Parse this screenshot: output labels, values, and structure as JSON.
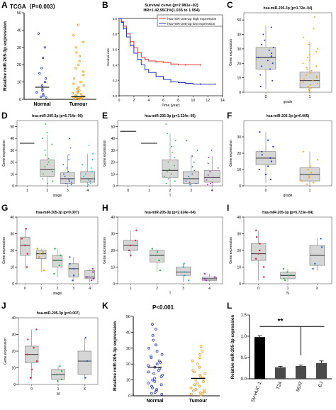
{
  "chart_data": [
    {
      "id": "A",
      "panel_letter": "A",
      "type": "scatter",
      "title": "TCGA（P=0.003）",
      "ylabel": "Relative miR-205-3p expression",
      "categories": [
        "Normal",
        "Tumour"
      ],
      "ylim": [
        0,
        50
      ],
      "yticks": [
        0,
        10,
        20,
        30,
        40,
        50
      ],
      "series": [
        {
          "color": "#2f3bb8",
          "mean": 7,
          "values": [
            38,
            30,
            24,
            18,
            15,
            12,
            10,
            8,
            6,
            5,
            4,
            3,
            2,
            1.5,
            1
          ]
        },
        {
          "color": "#f39c1f",
          "mean": 1.5,
          "values": [
            43,
            37,
            33,
            30,
            27,
            25,
            22,
            20,
            18,
            16,
            14,
            12,
            10,
            9,
            8,
            7,
            6,
            5,
            4.5,
            4,
            3.5,
            3,
            2.5,
            2,
            1.8,
            1.6,
            1.4,
            1.2,
            1,
            0.8,
            0.6,
            0.5,
            0.4,
            0.3,
            0.2,
            0.1,
            0.05
          ]
        }
      ]
    },
    {
      "id": "B",
      "panel_letter": "B",
      "type": "line",
      "title": "Survival curve (p=2.981e−02)",
      "subtitle": "HR=1.42,95CI%(1.035 to 1.954)",
      "xlabel": "Time (year)",
      "ylabel": "Survival rate",
      "xlim": [
        0,
        14
      ],
      "ylim": [
        0,
        1
      ],
      "xticks": [
        0,
        2,
        4,
        6,
        8,
        10,
        12,
        14
      ],
      "yticks": [
        0,
        0.2,
        0.4,
        0.6,
        0.8,
        1.0
      ],
      "ytick_labels": [
        "0.0",
        "0.2",
        "0.4",
        "0.6",
        "0.8",
        "1.0"
      ],
      "series": [
        {
          "name": "hsa-miR-205-3p high expression",
          "color": "#e8322a",
          "x": [
            0,
            0.3,
            0.6,
            1,
            1.5,
            2,
            2.5,
            3,
            3.5,
            4,
            5,
            6,
            7,
            8,
            9,
            10,
            11
          ],
          "y": [
            1,
            0.96,
            0.9,
            0.8,
            0.7,
            0.62,
            0.56,
            0.5,
            0.47,
            0.45,
            0.44,
            0.43,
            0.41,
            0.4,
            0.4,
            0.4,
            0.4
          ]
        },
        {
          "name": "hsa-miR-205-3p low expression",
          "color": "#2434c4",
          "x": [
            0,
            0.3,
            0.6,
            1,
            1.5,
            2,
            2.5,
            3,
            3.5,
            4,
            5,
            6,
            7,
            8,
            9,
            10,
            11,
            12,
            13
          ],
          "y": [
            1,
            0.95,
            0.87,
            0.76,
            0.65,
            0.55,
            0.47,
            0.4,
            0.34,
            0.3,
            0.25,
            0.21,
            0.18,
            0.17,
            0.16,
            0.15,
            0.15,
            0.15,
            0.15
          ]
        }
      ]
    },
    {
      "id": "C",
      "panel_letter": "C",
      "type": "box",
      "title": "hsa-miR-205-3p (p=1.72e−04)",
      "xlabel": "grade",
      "ylabel": "Gene expression",
      "categories": [
        "0",
        "1"
      ],
      "ylim": [
        0,
        55
      ],
      "yticks": [
        0,
        10,
        20,
        30,
        40,
        50
      ],
      "boxes": [
        {
          "q1": 16,
          "median": 24,
          "q3": 31,
          "whisker_low": 2,
          "whisker_high": 46,
          "color": "#2434c4",
          "points": [
            45,
            40,
            36,
            33,
            31,
            29,
            27,
            25,
            24,
            22,
            20,
            18,
            16,
            12,
            8,
            4
          ]
        },
        {
          "q1": 3,
          "median": 8,
          "q3": 14,
          "whisker_low": 0,
          "whisker_high": 35,
          "color": "#f3a61c",
          "points": [
            52,
            44,
            38,
            33,
            30,
            28,
            26,
            24,
            22,
            20,
            18,
            17,
            16,
            15,
            14,
            13,
            12,
            11,
            10,
            9,
            8,
            7,
            6,
            5,
            4,
            3,
            2,
            1
          ]
        }
      ]
    },
    {
      "id": "D",
      "panel_letter": "D",
      "type": "box",
      "title": "hsa-miR-205-3p (p=6.714e−06)",
      "xlabel": "stage",
      "ylabel": "Gene expression",
      "categories": [
        "1",
        "2",
        "3",
        "4"
      ],
      "ylim": [
        0,
        55
      ],
      "yticks": [
        0,
        10,
        20,
        30,
        40,
        50
      ],
      "boxes": [
        {
          "q1": 36,
          "median": 36,
          "q3": 36,
          "whisker_low": 36,
          "whisker_high": 36,
          "color": "#a00025",
          "points": []
        },
        {
          "q1": 8,
          "median": 14,
          "q3": 22,
          "whisker_low": 0,
          "whisker_high": 43,
          "color": "#2db34a",
          "points": [
            52,
            45,
            40,
            35,
            30,
            26,
            23,
            20,
            18,
            16,
            14,
            12,
            10,
            8,
            6,
            4,
            2
          ]
        },
        {
          "q1": 2,
          "median": 6,
          "q3": 11,
          "whisker_low": 0,
          "whisker_high": 26,
          "color": "#2c5fd1",
          "points": [
            40,
            32,
            26,
            22,
            18,
            15,
            12,
            10,
            8,
            6,
            5,
            4,
            3,
            2,
            1
          ]
        },
        {
          "q1": 3,
          "median": 6,
          "q3": 12,
          "whisker_low": 0,
          "whisker_high": 27,
          "color": "#17b8c8",
          "points": [
            34,
            27,
            22,
            18,
            15,
            12,
            10,
            8,
            6,
            5,
            4,
            3,
            2,
            1
          ]
        }
      ]
    },
    {
      "id": "E",
      "panel_letter": "E",
      "type": "box",
      "title": "hsa-miR-205-3p (p=3.324e−05)",
      "xlabel": "T",
      "ylabel": "Gene expression",
      "categories": [
        "0",
        "1",
        "2",
        "3",
        "4"
      ],
      "ylim": [
        0,
        55
      ],
      "yticks": [
        0,
        10,
        20,
        30,
        40,
        50
      ],
      "boxes": [
        {
          "q1": 46,
          "median": 46,
          "q3": 46,
          "whisker_low": 46,
          "whisker_high": 46,
          "color": "#a00025",
          "points": []
        },
        {
          "q1": 36,
          "median": 36,
          "q3": 36,
          "whisker_low": 36,
          "whisker_high": 36,
          "color": "#c8a000",
          "points": []
        },
        {
          "q1": 7,
          "median": 13,
          "q3": 22,
          "whisker_low": 0,
          "whisker_high": 44,
          "color": "#2db34a",
          "points": [
            52,
            44,
            38,
            33,
            28,
            24,
            20,
            17,
            14,
            12,
            10,
            8,
            6,
            4,
            2
          ]
        },
        {
          "q1": 2,
          "median": 6,
          "q3": 12,
          "whisker_low": 0,
          "whisker_high": 26,
          "color": "#2c5fd1",
          "points": [
            38,
            30,
            25,
            20,
            16,
            13,
            10,
            8,
            6,
            4,
            3,
            2,
            1
          ]
        },
        {
          "q1": 3,
          "median": 7,
          "q3": 13,
          "whisker_low": 0,
          "whisker_high": 25,
          "color": "#a020c0",
          "points": [
            30,
            24,
            19,
            15,
            12,
            9,
            7,
            5,
            3,
            2,
            1
          ]
        }
      ]
    },
    {
      "id": "F",
      "panel_letter": "F",
      "type": "box",
      "title": "hsa-miR-205-3p (p=0.005)",
      "xlabel": "grade",
      "ylabel": "Gene expression",
      "categories": [
        "0",
        "1"
      ],
      "ylim": [
        0,
        40
      ],
      "yticks": [
        0,
        10,
        20,
        30
      ],
      "boxes": [
        {
          "q1": 13,
          "median": 17,
          "q3": 21,
          "whisker_low": 2,
          "whisker_high": 33,
          "color": "#2434c4",
          "points": [
            33,
            28,
            24,
            21,
            19,
            17,
            15,
            12,
            10,
            7,
            4
          ]
        },
        {
          "q1": 3,
          "median": 7,
          "q3": 11,
          "whisker_low": 0,
          "whisker_high": 21,
          "color": "#f3a61c",
          "points": [
            21,
            16,
            12,
            10,
            8,
            6,
            5,
            3,
            2,
            1
          ]
        }
      ]
    },
    {
      "id": "G",
      "panel_letter": "G",
      "type": "box",
      "title": "hsa-miR-205-3p (p=0.007)",
      "xlabel": "stage",
      "ylabel": "Gene expression",
      "categories": [
        "0",
        "1",
        "2",
        "3",
        "4"
      ],
      "ylim": [
        0,
        40
      ],
      "yticks": [
        0,
        10,
        20,
        30,
        40
      ],
      "boxes": [
        {
          "q1": 17,
          "median": 23,
          "q3": 28,
          "whisker_low": 9,
          "whisker_high": 33,
          "color": "#e02040",
          "points": [
            33,
            27,
            23,
            18,
            10
          ]
        },
        {
          "q1": 15,
          "median": 18,
          "q3": 20,
          "whisker_low": 7,
          "whisker_high": 21,
          "color": "#c8a000",
          "points": [
            21,
            19,
            18,
            16,
            8
          ]
        },
        {
          "q1": 10,
          "median": 14,
          "q3": 17,
          "whisker_low": 4,
          "whisker_high": 21,
          "color": "#2db34a",
          "points": [
            21,
            17,
            14,
            11,
            6
          ]
        },
        {
          "q1": 4,
          "median": 9,
          "q3": 12,
          "whisker_low": 1,
          "whisker_high": 16,
          "color": "#2c5fd1",
          "points": [
            16,
            12,
            9,
            5,
            2
          ]
        },
        {
          "q1": 3,
          "median": 4,
          "q3": 8,
          "whisker_low": 1,
          "whisker_high": 9,
          "color": "#a020c0",
          "points": [
            9,
            7,
            4,
            3,
            2
          ]
        }
      ]
    },
    {
      "id": "H",
      "panel_letter": "H",
      "type": "box",
      "title": "hsa-miR-205-3p (p=2.624e−04)",
      "xlabel": "T",
      "ylabel": "Gene expression",
      "categories": [
        "1",
        "2",
        "3",
        "4"
      ],
      "ylim": [
        0,
        40
      ],
      "yticks": [
        0,
        10,
        20,
        30,
        40
      ],
      "boxes": [
        {
          "q1": 20,
          "median": 23,
          "q3": 26,
          "whisker_low": 16,
          "whisker_high": 32,
          "color": "#e02040",
          "points": [
            32,
            26,
            23,
            20,
            17
          ]
        },
        {
          "q1": 13,
          "median": 17,
          "q3": 20,
          "whisker_low": 7,
          "whisker_high": 21,
          "color": "#2db34a",
          "points": [
            21,
            19,
            17,
            14,
            8
          ]
        },
        {
          "q1": 5,
          "median": 7,
          "q3": 10,
          "whisker_low": 1,
          "whisker_high": 12,
          "color": "#17b8c8",
          "points": [
            12,
            10,
            7,
            5,
            2
          ]
        },
        {
          "q1": 2,
          "median": 3,
          "q3": 4,
          "whisker_low": 1,
          "whisker_high": 6,
          "color": "#a020c0",
          "points": [
            6,
            4,
            3,
            2
          ]
        }
      ]
    },
    {
      "id": "I",
      "panel_letter": "I",
      "type": "box",
      "title": "hsa-miR-205-3p (p=5.723e−04)",
      "xlabel": "N",
      "ylabel": "Gene expression",
      "categories": [
        "0",
        "1",
        "X"
      ],
      "ylim": [
        0,
        40
      ],
      "yticks": [
        0,
        10,
        20,
        30,
        40
      ],
      "boxes": [
        {
          "q1": 14,
          "median": 18,
          "q3": 24,
          "whisker_low": 2,
          "whisker_high": 32,
          "color": "#e02040",
          "points": [
            32,
            28,
            24,
            20,
            18,
            15,
            10,
            4
          ]
        },
        {
          "q1": 3,
          "median": 5,
          "q3": 7,
          "whisker_low": 1,
          "whisker_high": 9,
          "color": "#2db34a",
          "points": [
            9,
            7,
            5,
            3,
            2
          ]
        },
        {
          "q1": 11,
          "median": 17,
          "q3": 23,
          "whisker_low": 8,
          "whisker_high": 27,
          "color": "#2c5fd1",
          "points": [
            27,
            22,
            12,
            9
          ]
        }
      ]
    },
    {
      "id": "J",
      "panel_letter": "J",
      "type": "box",
      "title": "hsa-miR-205-3p (p=0.007)",
      "xlabel": "M",
      "ylabel": "Gene expression",
      "categories": [
        "0",
        "1",
        "X"
      ],
      "ylim": [
        0,
        40
      ],
      "yticks": [
        0,
        10,
        20,
        30,
        40
      ],
      "boxes": [
        {
          "q1": 13,
          "median": 18,
          "q3": 23,
          "whisker_low": 3,
          "whisker_high": 33,
          "color": "#e02040",
          "points": [
            33,
            27,
            22,
            18,
            14,
            9,
            4
          ]
        },
        {
          "q1": 3,
          "median": 6,
          "q3": 9,
          "whisker_low": 1,
          "whisker_high": 11,
          "color": "#2db34a",
          "points": [
            11,
            8,
            6,
            3,
            2
          ]
        },
        {
          "q1": 6,
          "median": 14,
          "q3": 20,
          "whisker_low": 3,
          "whisker_high": 28,
          "color": "#2c5fd1",
          "points": [
            28,
            14,
            4
          ]
        }
      ]
    },
    {
      "id": "K",
      "panel_letter": "K",
      "type": "scatter",
      "title": "P<0.001",
      "ylabel": "Relative miR-205-3p expression",
      "categories": [
        "Normal",
        "Tumour"
      ],
      "ylim": [
        0,
        50
      ],
      "yticks": [
        0,
        10,
        20,
        30,
        40,
        50
      ],
      "series": [
        {
          "color": "#2f3bb8",
          "mean": 18,
          "values": [
            45,
            42,
            38,
            35,
            32,
            30,
            28,
            26,
            25,
            24,
            22,
            21,
            20,
            19,
            18,
            17,
            16,
            15,
            14,
            13,
            12,
            11,
            10,
            9,
            8,
            7,
            6,
            5,
            4,
            3,
            2,
            1.5,
            1
          ]
        },
        {
          "color": "#f39c1f",
          "mean": 11,
          "values": [
            31,
            28,
            26,
            24,
            22,
            20,
            18,
            16,
            15,
            14,
            13,
            12,
            11,
            10,
            9,
            8,
            7,
            6,
            5,
            4,
            3.5,
            3,
            2.5,
            2,
            1.5,
            1,
            0.5
          ]
        }
      ]
    },
    {
      "id": "L",
      "panel_letter": "L",
      "type": "bar",
      "ylabel": "Relative miR-205-3p expression",
      "categories": [
        "SV-HUC-1",
        "T24",
        "5637",
        "EJ"
      ],
      "values": [
        0.98,
        0.27,
        0.3,
        0.37
      ],
      "errors": [
        0.03,
        0.02,
        0.02,
        0.05
      ],
      "ylim": [
        0,
        1.5
      ],
      "yticks": [
        0,
        0.5,
        1.0,
        1.5
      ],
      "ytick_labels": [
        "0.0",
        "0.5",
        "1.0",
        "1.5"
      ],
      "significance": "**"
    }
  ]
}
